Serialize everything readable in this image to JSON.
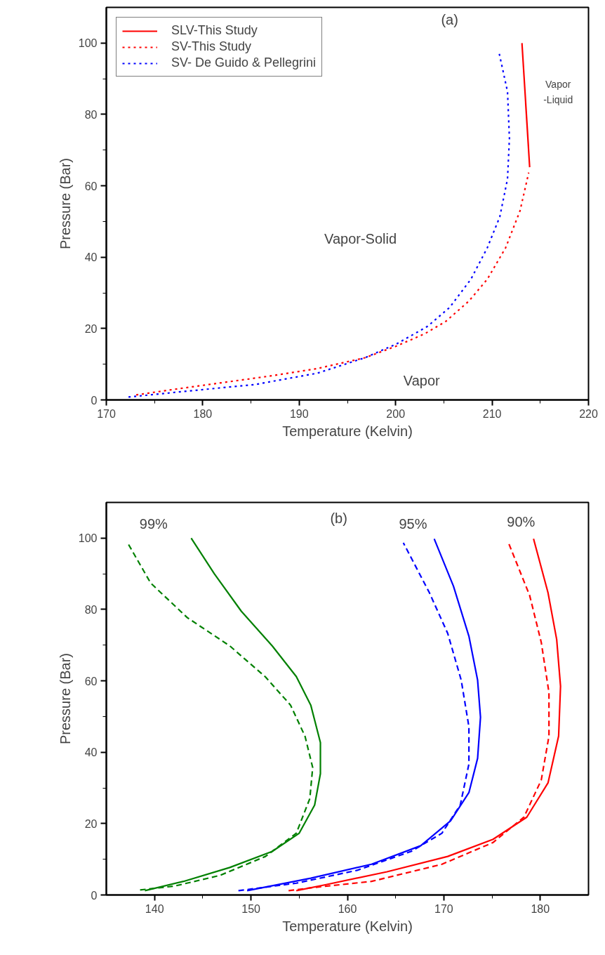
{
  "chart_data": [
    {
      "type": "line",
      "xlabel": "Temperature (Kelvin)",
      "ylabel": "Pressure (Bar)",
      "xlim": [
        170,
        220
      ],
      "ylim": [
        0,
        110
      ],
      "xticks": [
        170,
        180,
        190,
        200,
        210,
        220
      ],
      "yticks": [
        0,
        20,
        40,
        60,
        80,
        100
      ],
      "grid": false,
      "legend": "top left",
      "annotations": [
        "(a)",
        "Vapor-Solid",
        "Vapor",
        "Vapor\n-Liquid"
      ],
      "series": [
        {
          "name": "SLV-This Study",
          "color": "#ff0000",
          "line_style": "solid",
          "x": [
            213.1,
            213.9
          ],
          "values": [
            100,
            65.2
          ]
        },
        {
          "name": "SV-This Study",
          "color": "#ff0000",
          "line_style": "dotted",
          "x": [
            173.1,
            177.4,
            182.2,
            187.0,
            191.9,
            196.8,
            200.0,
            203.0,
            205.2,
            207.6,
            209.5,
            211.4,
            212.9,
            213.8
          ],
          "values": [
            1.4,
            3.1,
            4.9,
            6.7,
            8.8,
            11.8,
            15.0,
            18.5,
            22.0,
            27.7,
            33.8,
            42.6,
            53.0,
            63.7
          ]
        },
        {
          "name": "SV- De Guido & Pellegrini",
          "color": "#0000ff",
          "line_style": "dotted",
          "x": [
            172.3,
            178.9,
            185.4,
            191.9,
            196.8,
            200.1,
            203.3,
            205.6,
            207.8,
            209.5,
            210.8,
            211.6,
            211.8,
            211.6,
            210.7
          ],
          "values": [
            0.8,
            2.6,
            4.3,
            7.5,
            11.8,
            15.7,
            20.6,
            25.9,
            33.8,
            42.6,
            51.3,
            61.9,
            73.3,
            86.4,
            97.6
          ]
        }
      ]
    },
    {
      "type": "line",
      "xlabel": "Temperature (Kelvin)",
      "ylabel": "Pressure (Bar)",
      "xlim": [
        135,
        185
      ],
      "ylim": [
        0,
        110
      ],
      "xticks": [
        140,
        150,
        160,
        170,
        180
      ],
      "yticks": [
        0,
        20,
        40,
        60,
        80,
        100
      ],
      "grid": false,
      "legend": false,
      "annotations": [
        "(b)",
        "99%",
        "95%",
        "90%"
      ],
      "series": [
        {
          "color": "#008000",
          "line_style": "solid",
          "x": [
            139.0,
            143.0,
            147.8,
            152.2,
            155.0,
            156.6,
            157.2,
            157.2,
            156.2,
            154.7,
            152.2,
            149.0,
            146.2,
            143.8
          ],
          "values": [
            1.2,
            3.8,
            7.7,
            12.2,
            17.3,
            25.2,
            34.0,
            42.7,
            53.2,
            61.2,
            69.8,
            79.5,
            90.0,
            100
          ]
        },
        {
          "color": "#008000",
          "line_style": "dashed",
          "x": [
            138.5,
            142.1,
            146.8,
            151.5,
            154.7,
            156.1,
            156.4,
            155.6,
            154.1,
            151.5,
            147.8,
            143.4,
            139.6,
            137.2
          ],
          "values": [
            1.4,
            2.5,
            5.5,
            10.8,
            17.3,
            27.0,
            35.7,
            44.5,
            53.2,
            61.1,
            69.8,
            77.7,
            87.4,
            98.7
          ]
        },
        {
          "color": "#0000ff",
          "line_style": "solid",
          "x": [
            149.6,
            156.2,
            162.5,
            167.6,
            170.7,
            172.6,
            173.5,
            173.8,
            173.5,
            172.6,
            171.0,
            169.0
          ],
          "values": [
            1.2,
            4.7,
            8.6,
            13.8,
            20.8,
            28.7,
            38.3,
            49.8,
            60.2,
            72.5,
            86.5,
            99.8
          ]
        },
        {
          "color": "#0000ff",
          "line_style": "dashed",
          "x": [
            148.7,
            154.7,
            161.0,
            166.6,
            169.8,
            171.7,
            172.6,
            172.6,
            171.8,
            170.4,
            168.5,
            165.8
          ],
          "values": [
            1.2,
            3.3,
            6.9,
            12.2,
            17.3,
            25.2,
            36.7,
            47.1,
            60.2,
            73.3,
            84.7,
            98.7
          ]
        },
        {
          "color": "#ff0000",
          "line_style": "solid",
          "x": [
            154.7,
            157.8,
            164.1,
            170.4,
            175.1,
            178.6,
            180.8,
            181.9,
            182.1,
            181.7,
            180.8,
            179.3
          ],
          "values": [
            1.2,
            2.9,
            6.5,
            10.8,
            15.6,
            21.8,
            31.4,
            44.5,
            58.5,
            71.6,
            84.7,
            99.8
          ]
        },
        {
          "color": "#ff0000",
          "line_style": "dashed",
          "x": [
            153.9,
            156.2,
            162.5,
            169.8,
            175.1,
            178.3,
            180.1,
            180.9,
            180.9,
            180.1,
            178.9,
            176.7
          ],
          "values": [
            1.2,
            2.0,
            3.8,
            8.6,
            14.7,
            21.8,
            32.2,
            44.5,
            56.7,
            70.8,
            83.9,
            98.7
          ]
        }
      ]
    }
  ]
}
